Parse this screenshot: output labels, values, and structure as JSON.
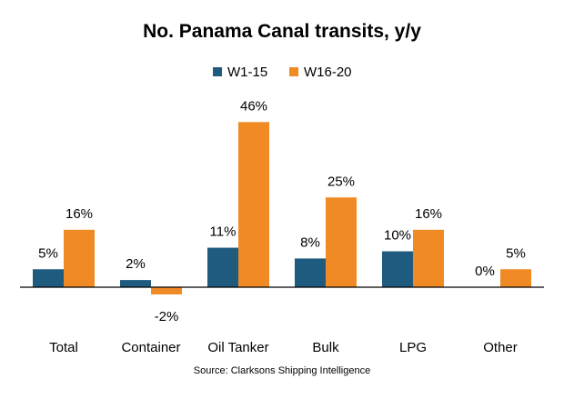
{
  "chart_data": {
    "type": "bar",
    "title": "No. Panama Canal transits, y/y",
    "source": "Source: Clarksons Shipping Intelligence",
    "categories": [
      "Total",
      "Container",
      "Oil Tanker",
      "Bulk",
      "LPG",
      "Other"
    ],
    "series": [
      {
        "name": "W1-15",
        "color": "#1f5a7f",
        "values": [
          5,
          2,
          11,
          8,
          10,
          0
        ],
        "labels": [
          "5%",
          "2%",
          "11%",
          "8%",
          "10%",
          "0%"
        ]
      },
      {
        "name": "W16-20",
        "color": "#f08a24",
        "values": [
          16,
          -2,
          46,
          25,
          16,
          5
        ],
        "labels": [
          "16%",
          "-2%",
          "46%",
          "25%",
          "16%",
          "5%"
        ]
      }
    ],
    "xlabel": "",
    "ylabel": "",
    "ylim": [
      -5,
      50
    ],
    "grid": false,
    "legend": "top-center"
  }
}
